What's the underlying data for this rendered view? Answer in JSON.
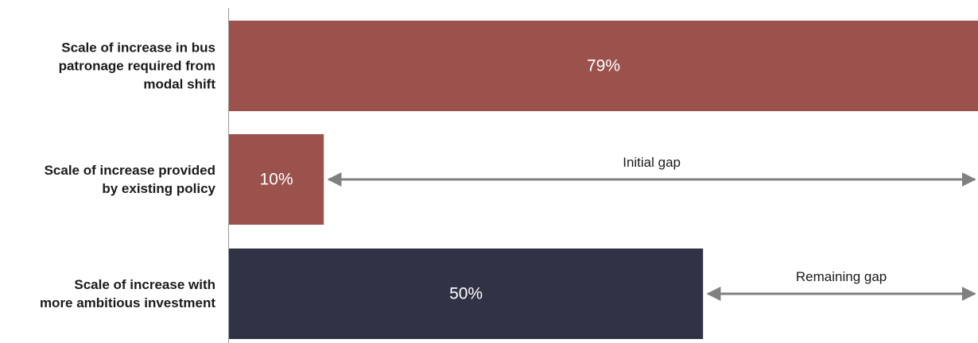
{
  "chart_data": {
    "type": "bar",
    "orientation": "horizontal",
    "categories": [
      [
        "Scale of increase in bus",
        "patronage required from",
        "modal shift"
      ],
      [
        "Scale of increase provided",
        "by existing policy"
      ],
      [
        "Scale of increase with",
        "more ambitious investment"
      ]
    ],
    "values": [
      79,
      10,
      50
    ],
    "value_labels": [
      "79%",
      "10%",
      "50%"
    ],
    "bar_colors": [
      "#9c524c",
      "#9c524c",
      "#303345"
    ],
    "xlim": [
      0,
      79
    ],
    "grid": false,
    "legend": "none",
    "annotations": [
      {
        "label": "Initial gap",
        "from": 10,
        "to": 79,
        "bar_index": 1
      },
      {
        "label": "Remaining gap",
        "from": 50,
        "to": 79,
        "bar_index": 2
      }
    ],
    "annotation_color": "#808080"
  }
}
